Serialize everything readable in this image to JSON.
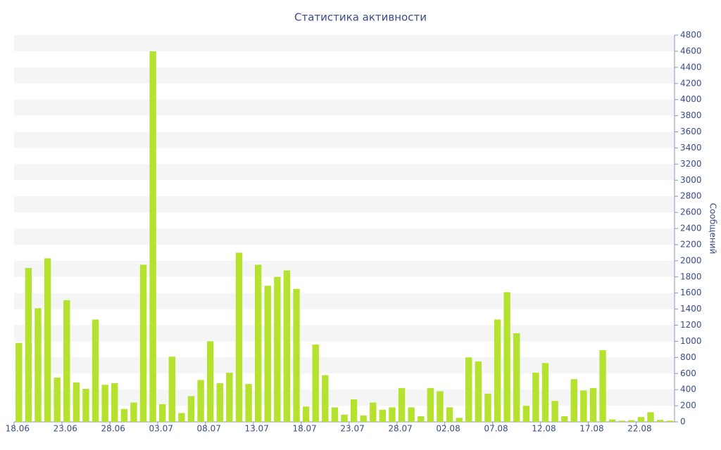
{
  "chart_data": {
    "type": "bar",
    "title": "Статистика активности",
    "y_label": "Сообщений",
    "categories": [
      "18.06",
      null,
      null,
      null,
      null,
      "23.06",
      null,
      null,
      null,
      null,
      "28.06",
      null,
      null,
      null,
      null,
      "03.07",
      null,
      null,
      null,
      null,
      "08.07",
      null,
      null,
      null,
      null,
      "13.07",
      null,
      null,
      null,
      null,
      "18.07",
      null,
      null,
      null,
      null,
      "23.07",
      null,
      null,
      null,
      null,
      "28.07",
      null,
      null,
      null,
      null,
      "02.08",
      null,
      null,
      null,
      null,
      "07.08",
      null,
      null,
      null,
      null,
      "12.08",
      null,
      null,
      null,
      null,
      "17.08",
      null,
      null,
      null,
      null,
      "22.08",
      null,
      null,
      null
    ],
    "values": [
      980,
      1910,
      1410,
      2030,
      550,
      1510,
      490,
      410,
      1270,
      460,
      480,
      160,
      240,
      1950,
      4600,
      220,
      810,
      110,
      320,
      520,
      1000,
      480,
      610,
      2100,
      470,
      1950,
      1690,
      1800,
      1880,
      1650,
      190,
      960,
      580,
      180,
      90,
      280,
      80,
      240,
      150,
      180,
      420,
      180,
      70,
      420,
      380,
      180,
      50,
      800,
      750,
      350,
      1270,
      1610,
      1100,
      200,
      610,
      730,
      260,
      70,
      530,
      390,
      420,
      890,
      30,
      15,
      20,
      60,
      120,
      25,
      15
    ],
    "color": "#b5e22f",
    "ylim": [
      0,
      4800
    ],
    "yticks": [
      0,
      200,
      400,
      600,
      800,
      1000,
      1200,
      1400,
      1600,
      1800,
      2000,
      2200,
      2400,
      2600,
      2800,
      3000,
      3200,
      3400,
      3600,
      3800,
      4000,
      4200,
      4400,
      4600,
      4800
    ],
    "grid": true
  }
}
